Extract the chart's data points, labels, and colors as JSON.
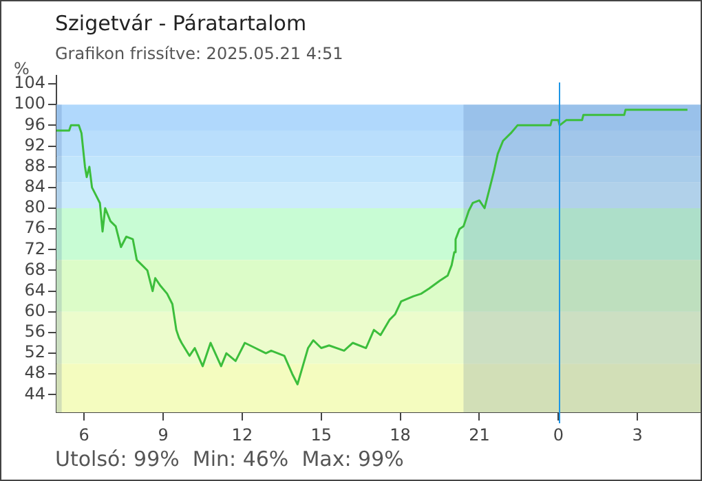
{
  "chart_data": {
    "type": "line",
    "title": "Szigetvár - Páratartalom",
    "subtitle": "Grafikon frissítve: 2025.05.21 4:51",
    "ylabel": "%",
    "annotations": [
      "Utolsó: 99%  Min: 46%  Max: 99%"
    ],
    "x": [
      "2025-05-20T04:57",
      "2025-05-20T05:26",
      "2025-05-20T05:30",
      "2025-05-20T05:48",
      "2025-05-20T05:54",
      "2025-05-20T06:02",
      "2025-05-20T06:06",
      "2025-05-20T06:12",
      "2025-05-20T06:18",
      "2025-05-20T06:27",
      "2025-05-20T06:36",
      "2025-05-20T06:42",
      "2025-05-20T06:48",
      "2025-05-20T07:00",
      "2025-05-20T07:12",
      "2025-05-20T07:24",
      "2025-05-20T07:36",
      "2025-05-20T07:51",
      "2025-05-20T08:00",
      "2025-05-20T08:12",
      "2025-05-20T08:24",
      "2025-05-20T08:36",
      "2025-05-20T08:42",
      "2025-05-20T08:54",
      "2025-05-20T09:09",
      "2025-05-20T09:21",
      "2025-05-20T09:30",
      "2025-05-20T09:36",
      "2025-05-20T09:42",
      "2025-05-20T10:00",
      "2025-05-20T10:12",
      "2025-05-20T10:30",
      "2025-05-20T10:48",
      "2025-05-20T11:12",
      "2025-05-20T11:24",
      "2025-05-20T11:45",
      "2025-05-20T12:06",
      "2025-05-20T12:30",
      "2025-05-20T12:54",
      "2025-05-20T13:06",
      "2025-05-20T13:36",
      "2025-05-20T13:54",
      "2025-05-20T14:06",
      "2025-05-20T14:18",
      "2025-05-20T14:30",
      "2025-05-20T14:42",
      "2025-05-20T15:00",
      "2025-05-20T15:18",
      "2025-05-20T15:52",
      "2025-05-20T16:12",
      "2025-05-20T16:42",
      "2025-05-20T17:00",
      "2025-05-20T17:15",
      "2025-05-20T17:36",
      "2025-05-20T17:48",
      "2025-05-20T18:02",
      "2025-05-20T18:30",
      "2025-05-20T18:48",
      "2025-05-20T19:06",
      "2025-05-20T19:30",
      "2025-05-20T19:48",
      "2025-05-20T19:57",
      "2025-05-20T20:03",
      "2025-05-20T20:06",
      "2025-05-20T20:15",
      "2025-05-20T20:24",
      "2025-05-20T20:36",
      "2025-05-20T20:45",
      "2025-05-20T21:00",
      "2025-05-20T21:12",
      "2025-05-20T21:24",
      "2025-05-20T21:33",
      "2025-05-20T21:42",
      "2025-05-20T21:54",
      "2025-05-20T22:12",
      "2025-05-20T22:27",
      "2025-05-20T23:42",
      "2025-05-20T23:45",
      "2025-05-21T00:00",
      "2025-05-21T00:03",
      "2025-05-21T00:18",
      "2025-05-21T00:54",
      "2025-05-21T00:57",
      "2025-05-21T02:30",
      "2025-05-21T02:33",
      "2025-05-21T04:54"
    ],
    "series": [
      {
        "color": "#3cbe3c",
        "values": [
          95,
          95,
          96,
          96,
          94.5,
          88,
          86,
          88,
          84,
          82.5,
          81,
          75.5,
          80,
          77.5,
          76.5,
          72.5,
          74.5,
          74,
          70,
          69,
          68,
          64,
          66.5,
          65,
          63.5,
          61.5,
          56.5,
          55,
          54,
          51.5,
          53,
          49.5,
          54,
          49.5,
          52,
          50.5,
          54,
          53,
          52,
          52.5,
          51.5,
          48,
          46,
          49.5,
          53,
          54.5,
          53,
          53.5,
          52.5,
          54,
          53,
          56.5,
          55.5,
          58.5,
          59.5,
          62,
          63,
          63.5,
          64.5,
          66,
          67,
          69,
          71.5,
          74,
          76,
          76.5,
          79.5,
          81,
          81.5,
          80,
          84,
          87,
          90.5,
          93,
          94.5,
          96,
          96,
          97,
          97,
          96,
          97,
          97,
          98,
          98,
          99,
          99
        ]
      }
    ],
    "xlim": [
      "2025-05-20T04:57",
      "2025-05-21T05:24"
    ],
    "xticks": [
      {
        "value": "2025-05-20T06:00",
        "label": "6"
      },
      {
        "value": "2025-05-20T09:00",
        "label": "9"
      },
      {
        "value": "2025-05-20T12:00",
        "label": "12"
      },
      {
        "value": "2025-05-20T15:00",
        "label": "15"
      },
      {
        "value": "2025-05-20T18:00",
        "label": "18"
      },
      {
        "value": "2025-05-20T21:00",
        "label": "21"
      },
      {
        "value": "2025-05-21T00:00",
        "label": "0"
      },
      {
        "value": "2025-05-21T03:00",
        "label": "3"
      }
    ],
    "ylim": [
      40.6,
      105.6
    ],
    "yticks": [
      44,
      48,
      52,
      56,
      60,
      64,
      68,
      72,
      76,
      80,
      84,
      88,
      92,
      96,
      100,
      104
    ],
    "grid": false,
    "legend": false,
    "marker": "none",
    "line_style": "solid",
    "ref_lines": [
      {
        "axis": "x",
        "value": "2025-05-21T00:00",
        "label": null,
        "color": "#1e96e6"
      }
    ],
    "bands": [
      {
        "axis": "y",
        "from": 95,
        "to": 100,
        "label": null,
        "color": "#b0d8fc"
      },
      {
        "axis": "y",
        "from": 90,
        "to": 95,
        "label": null,
        "color": "#b9defc"
      },
      {
        "axis": "y",
        "from": 85,
        "to": 90,
        "label": null,
        "color": "#c1e5fc"
      },
      {
        "axis": "y",
        "from": 80,
        "to": 85,
        "label": null,
        "color": "#ccebfc"
      },
      {
        "axis": "y",
        "from": 70,
        "to": 80,
        "label": null,
        "color": "#c8fcd4"
      },
      {
        "axis": "y",
        "from": 60,
        "to": 70,
        "label": null,
        "color": "#dcfcc8"
      },
      {
        "axis": "y",
        "from": 50,
        "to": 60,
        "label": null,
        "color": "#ecfccc"
      },
      {
        "axis": "y",
        "from": 40.6,
        "to": 50,
        "label": null,
        "color": "#f4fcbf"
      },
      {
        "axis": "x",
        "from": "2025-05-20T04:57",
        "to": "2025-05-20T05:09",
        "label": null,
        "color": "#284a8c"
      },
      {
        "axis": "x",
        "from": "2025-05-20T20:24",
        "to": "2025-05-21T05:24",
        "label": null,
        "color": "#284a8c"
      }
    ]
  }
}
